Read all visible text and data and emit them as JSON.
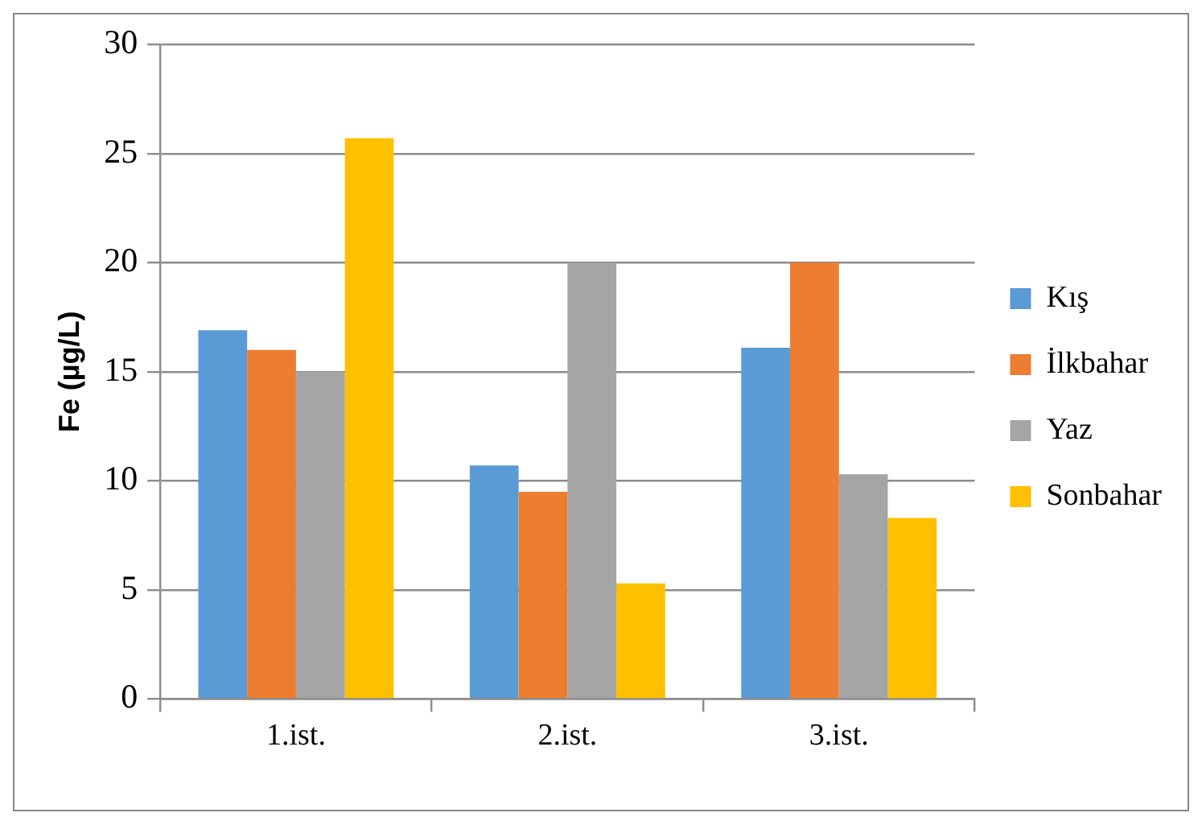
{
  "chart_data": {
    "type": "bar",
    "ylabel": "Fe (µg/L)",
    "categories": [
      "1.ist.",
      "2.ist.",
      "3.ist."
    ],
    "series": [
      {
        "name": "Kış",
        "color": "#5b9bd5",
        "values": [
          16.9,
          10.7,
          16.1
        ]
      },
      {
        "name": "İlkbahar",
        "color": "#ed7d31",
        "values": [
          16.0,
          9.5,
          20.0
        ]
      },
      {
        "name": "Yaz",
        "color": "#a5a5a5",
        "values": [
          15.0,
          20.0,
          10.3
        ]
      },
      {
        "name": "Sonbahar",
        "color": "#ffc000",
        "values": [
          25.7,
          5.3,
          8.3
        ]
      }
    ],
    "ylim": [
      0,
      30
    ],
    "yticks": [
      0,
      5,
      10,
      15,
      20,
      25,
      30
    ],
    "grid": "y",
    "legend": "right"
  }
}
